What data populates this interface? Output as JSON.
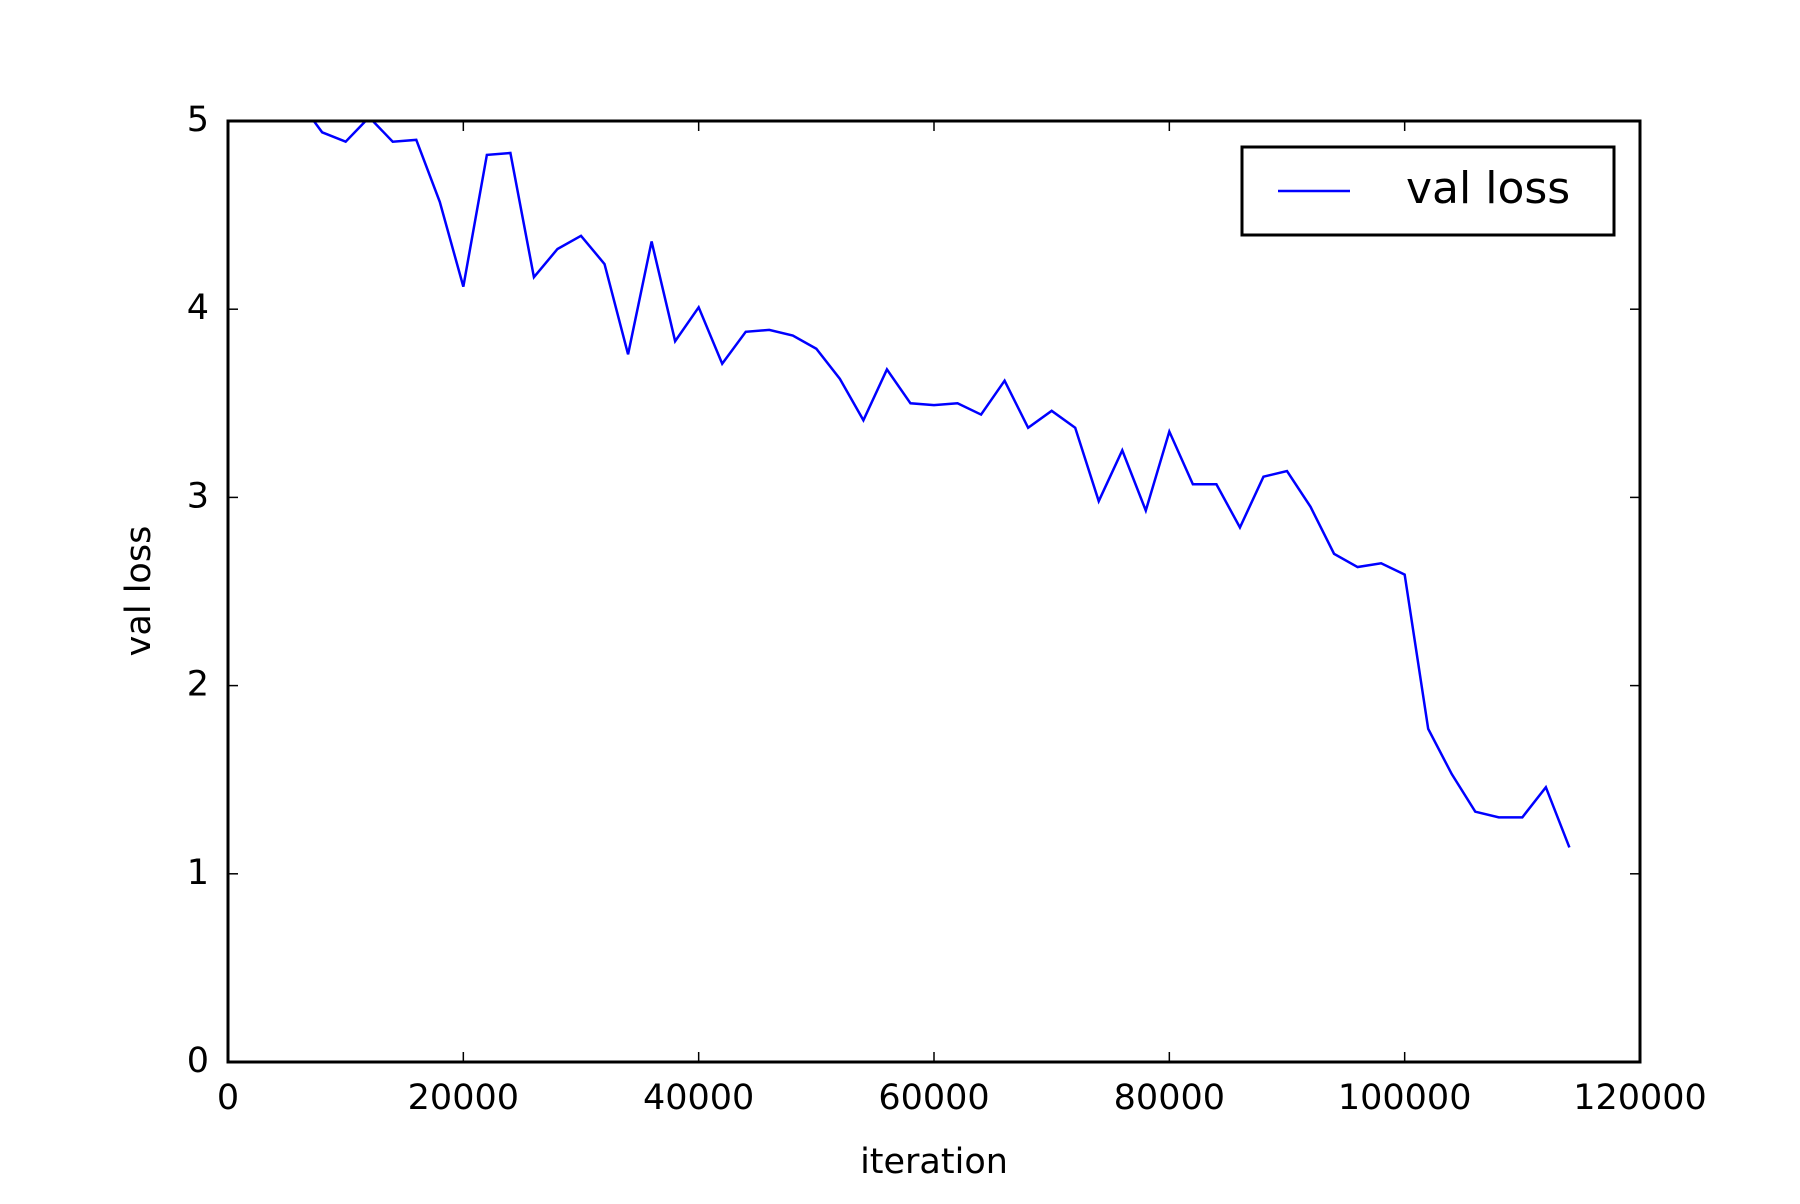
{
  "chart_data": {
    "type": "line",
    "xlabel": "iteration",
    "ylabel": "val loss",
    "x": [
      6000,
      8000,
      10000,
      12000,
      14000,
      16000,
      18000,
      20000,
      22000,
      24000,
      26000,
      28000,
      30000,
      32000,
      34000,
      36000,
      38000,
      40000,
      42000,
      44000,
      46000,
      48000,
      50000,
      52000,
      54000,
      56000,
      58000,
      60000,
      62000,
      64000,
      66000,
      68000,
      70000,
      72000,
      74000,
      76000,
      78000,
      80000,
      82000,
      84000,
      86000,
      88000,
      90000,
      92000,
      94000,
      96000,
      98000,
      100000,
      102000,
      104000,
      106000,
      108000,
      110000,
      112000,
      114000
    ],
    "series": [
      {
        "name": "val loss",
        "color": "#0000ff",
        "values": [
          5.11,
          4.94,
          4.89,
          5.02,
          4.89,
          4.9,
          4.57,
          4.12,
          4.82,
          4.83,
          4.17,
          4.32,
          4.39,
          4.24,
          3.76,
          4.36,
          3.83,
          4.01,
          3.71,
          3.88,
          3.89,
          3.86,
          3.79,
          3.63,
          3.41,
          3.68,
          3.5,
          3.49,
          3.5,
          3.44,
          3.62,
          3.37,
          3.46,
          3.37,
          2.98,
          3.25,
          2.93,
          3.35,
          3.07,
          3.07,
          2.84,
          3.11,
          3.14,
          2.95,
          2.7,
          2.63,
          2.65,
          2.59,
          1.77,
          1.53,
          1.33,
          1.3,
          1.3,
          1.46,
          1.14
        ]
      }
    ],
    "xlim": [
      0,
      120000
    ],
    "xticks": [
      0,
      20000,
      40000,
      60000,
      80000,
      100000,
      120000
    ],
    "ylim": [
      0,
      5
    ],
    "yticks": [
      0,
      1,
      2,
      3,
      4,
      5
    ],
    "grid": false,
    "legend": "upper right"
  }
}
